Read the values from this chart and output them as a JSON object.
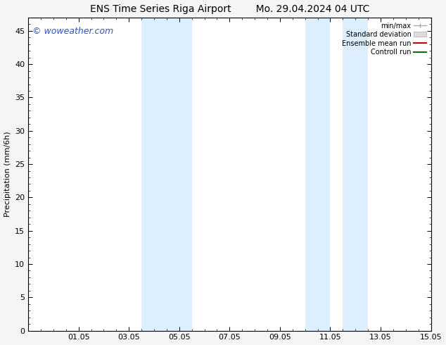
{
  "title_left": "ENS Time Series Riga Airport",
  "title_right": "Mo. 29.04.2024 04 UTC",
  "ylabel": "Precipitation (mm/6h)",
  "ylim": [
    0,
    47
  ],
  "yticks": [
    0,
    5,
    10,
    15,
    20,
    25,
    30,
    35,
    40,
    45
  ],
  "xtick_labels": [
    "01.05",
    "03.05",
    "05.05",
    "07.05",
    "09.05",
    "11.05",
    "13.05",
    "15.05"
  ],
  "xtick_positions": [
    2,
    4,
    6,
    8,
    10,
    12,
    14,
    16
  ],
  "xlim": [
    0,
    16
  ],
  "shaded_bands": [
    {
      "x_start": 4.5,
      "x_end": 5.5
    },
    {
      "x_start": 5.5,
      "x_end": 6.5
    },
    {
      "x_start": 11.0,
      "x_end": 12.0
    },
    {
      "x_start": 12.5,
      "x_end": 13.5
    }
  ],
  "shade_color": "#ddeeff",
  "watermark_text": "© woweather.com",
  "watermark_color": "#3355bb",
  "legend_labels": [
    "min/max",
    "Standard deviation",
    "Ensemble mean run",
    "Controll run"
  ],
  "legend_line_colors": [
    "#aaaaaa",
    "#cccccc",
    "#cc0000",
    "#007700"
  ],
  "background_color": "#f5f5f5",
  "plot_bg_color": "#ffffff",
  "title_fontsize": 10,
  "axis_fontsize": 8,
  "tick_fontsize": 8,
  "watermark_fontsize": 9
}
